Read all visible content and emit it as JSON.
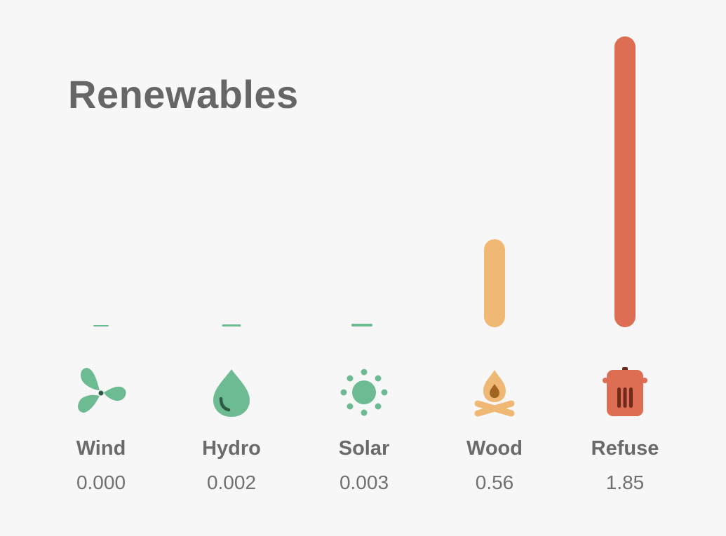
{
  "title": "Renewables",
  "colors": {
    "green": "#6dbb92",
    "orange": "#efb975",
    "red": "#dd6e53",
    "darkGreen": "#2c5a44",
    "darkOrange": "#a0661f",
    "darkRed": "#6e2a1c"
  },
  "chart_data": {
    "type": "bar",
    "title": "Renewables",
    "categories": [
      "Wind",
      "Hydro",
      "Solar",
      "Wood",
      "Refuse"
    ],
    "values": [
      0.0,
      0.002,
      0.003,
      0.56,
      1.85
    ],
    "value_labels": [
      "0.000",
      "0.002",
      "0.003",
      "0.56",
      "1.85"
    ],
    "icons": [
      "fan-icon",
      "water-drop-icon",
      "sun-icon",
      "campfire-icon",
      "trash-bin-icon"
    ],
    "bar_colors": [
      "#6dbb92",
      "#6dbb92",
      "#6dbb92",
      "#efb975",
      "#dd6e53"
    ],
    "xlabel": "",
    "ylabel": "",
    "ylim": [
      0,
      1.85
    ],
    "grid": false
  }
}
